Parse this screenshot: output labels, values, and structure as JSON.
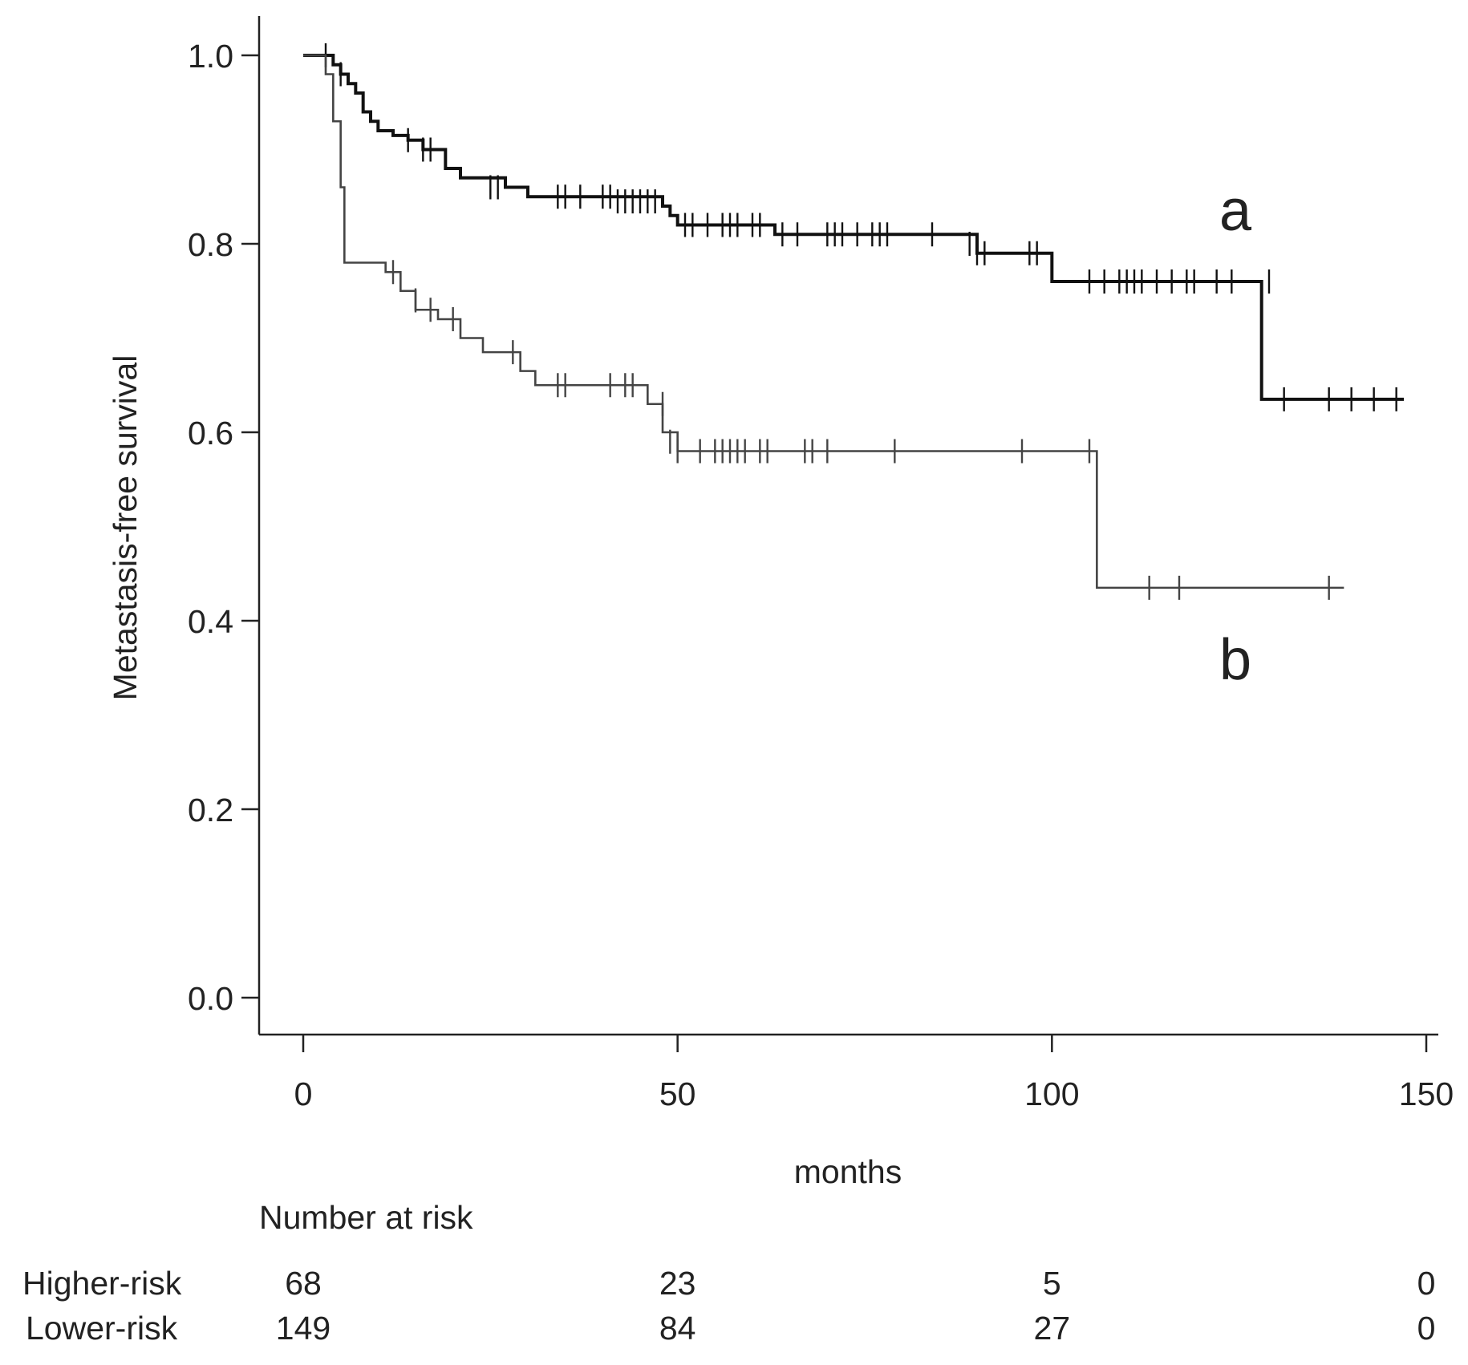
{
  "chart_data": {
    "type": "line",
    "title": "",
    "xlabel": "months",
    "ylabel": "Metastasis-free survival",
    "xlim": [
      0,
      150
    ],
    "ylim": [
      0,
      1
    ],
    "x_ticks": [
      0,
      50,
      100,
      150
    ],
    "x_tick_labels": [
      "0",
      "50",
      "100",
      "150"
    ],
    "y_ticks": [
      0,
      0.2,
      0.4,
      0.6,
      0.8,
      1.0
    ],
    "y_tick_labels": [
      "0.0",
      "0.2",
      "0.4",
      "0.6",
      "0.8",
      "1.0"
    ],
    "grid": false,
    "colors": {
      "axis": "#222222",
      "curve_a": "#111111",
      "curve_b": "#444444"
    },
    "series": [
      {
        "name": "a",
        "label": "a",
        "steps": [
          [
            0,
            1.0
          ],
          [
            2,
            1.0
          ],
          [
            4,
            0.99
          ],
          [
            5,
            0.98
          ],
          [
            6,
            0.97
          ],
          [
            7,
            0.96
          ],
          [
            8,
            0.94
          ],
          [
            9,
            0.93
          ],
          [
            10,
            0.92
          ],
          [
            12,
            0.915
          ],
          [
            14,
            0.91
          ],
          [
            16,
            0.9
          ],
          [
            19,
            0.88
          ],
          [
            21,
            0.87
          ],
          [
            27,
            0.86
          ],
          [
            30,
            0.85
          ],
          [
            48,
            0.84
          ],
          [
            49,
            0.83
          ],
          [
            50,
            0.82
          ],
          [
            63,
            0.81
          ],
          [
            90,
            0.79
          ],
          [
            100,
            0.76
          ],
          [
            128,
            0.635
          ],
          [
            147,
            0.635
          ]
        ],
        "censored": [
          [
            3,
            1.0
          ],
          [
            5,
            0.98
          ],
          [
            14,
            0.91
          ],
          [
            16,
            0.9
          ],
          [
            17,
            0.9
          ],
          [
            25,
            0.86
          ],
          [
            26,
            0.86
          ],
          [
            34,
            0.85
          ],
          [
            35,
            0.85
          ],
          [
            37,
            0.85
          ],
          [
            40,
            0.85
          ],
          [
            41,
            0.85
          ],
          [
            42,
            0.845
          ],
          [
            43,
            0.845
          ],
          [
            44,
            0.845
          ],
          [
            45,
            0.845
          ],
          [
            46,
            0.845
          ],
          [
            47,
            0.845
          ],
          [
            51,
            0.82
          ],
          [
            52,
            0.82
          ],
          [
            54,
            0.82
          ],
          [
            56,
            0.82
          ],
          [
            57,
            0.82
          ],
          [
            58,
            0.82
          ],
          [
            60,
            0.82
          ],
          [
            61,
            0.82
          ],
          [
            64,
            0.81
          ],
          [
            66,
            0.81
          ],
          [
            70,
            0.81
          ],
          [
            71,
            0.81
          ],
          [
            72,
            0.81
          ],
          [
            74,
            0.81
          ],
          [
            76,
            0.81
          ],
          [
            77,
            0.81
          ],
          [
            78,
            0.81
          ],
          [
            84,
            0.81
          ],
          [
            89,
            0.8
          ],
          [
            90,
            0.79
          ],
          [
            91,
            0.79
          ],
          [
            97,
            0.79
          ],
          [
            98,
            0.79
          ],
          [
            105,
            0.76
          ],
          [
            107,
            0.76
          ],
          [
            109,
            0.76
          ],
          [
            110,
            0.76
          ],
          [
            111,
            0.76
          ],
          [
            112,
            0.76
          ],
          [
            114,
            0.76
          ],
          [
            116,
            0.76
          ],
          [
            118,
            0.76
          ],
          [
            119,
            0.76
          ],
          [
            122,
            0.76
          ],
          [
            124,
            0.76
          ],
          [
            129,
            0.76
          ],
          [
            131,
            0.635
          ],
          [
            137,
            0.635
          ],
          [
            140,
            0.635
          ],
          [
            143,
            0.635
          ],
          [
            146,
            0.635
          ]
        ]
      },
      {
        "name": "b",
        "label": "b",
        "steps": [
          [
            0,
            1.0
          ],
          [
            2,
            1.0
          ],
          [
            3,
            0.98
          ],
          [
            4,
            0.93
          ],
          [
            5,
            0.86
          ],
          [
            5.5,
            0.78
          ],
          [
            11,
            0.77
          ],
          [
            13,
            0.75
          ],
          [
            15,
            0.73
          ],
          [
            18,
            0.72
          ],
          [
            21,
            0.7
          ],
          [
            24,
            0.685
          ],
          [
            29,
            0.665
          ],
          [
            31,
            0.65
          ],
          [
            46,
            0.63
          ],
          [
            48,
            0.6
          ],
          [
            50,
            0.58
          ],
          [
            105,
            0.58
          ],
          [
            106,
            0.435
          ],
          [
            139,
            0.435
          ]
        ],
        "censored": [
          [
            12,
            0.77
          ],
          [
            15,
            0.74
          ],
          [
            17,
            0.73
          ],
          [
            20,
            0.72
          ],
          [
            28,
            0.685
          ],
          [
            34,
            0.65
          ],
          [
            35,
            0.65
          ],
          [
            41,
            0.65
          ],
          [
            43,
            0.65
          ],
          [
            44,
            0.65
          ],
          [
            48,
            0.63
          ],
          [
            49,
            0.59
          ],
          [
            50,
            0.58
          ],
          [
            53,
            0.58
          ],
          [
            55,
            0.58
          ],
          [
            56,
            0.58
          ],
          [
            57,
            0.58
          ],
          [
            58,
            0.58
          ],
          [
            59,
            0.58
          ],
          [
            61,
            0.58
          ],
          [
            62,
            0.58
          ],
          [
            67,
            0.58
          ],
          [
            68,
            0.58
          ],
          [
            70,
            0.58
          ],
          [
            79,
            0.58
          ],
          [
            96,
            0.58
          ],
          [
            105,
            0.58
          ],
          [
            113,
            0.435
          ],
          [
            117,
            0.435
          ],
          [
            137,
            0.435
          ]
        ]
      }
    ],
    "risk_table": {
      "title": "Number at risk",
      "times": [
        0,
        50,
        100,
        150
      ],
      "rows": [
        {
          "label": "Higher-risk",
          "values": [
            "68",
            "23",
            "5",
            "0"
          ]
        },
        {
          "label": "Lower-risk",
          "values": [
            "149",
            "84",
            "27",
            "0"
          ]
        }
      ]
    }
  }
}
